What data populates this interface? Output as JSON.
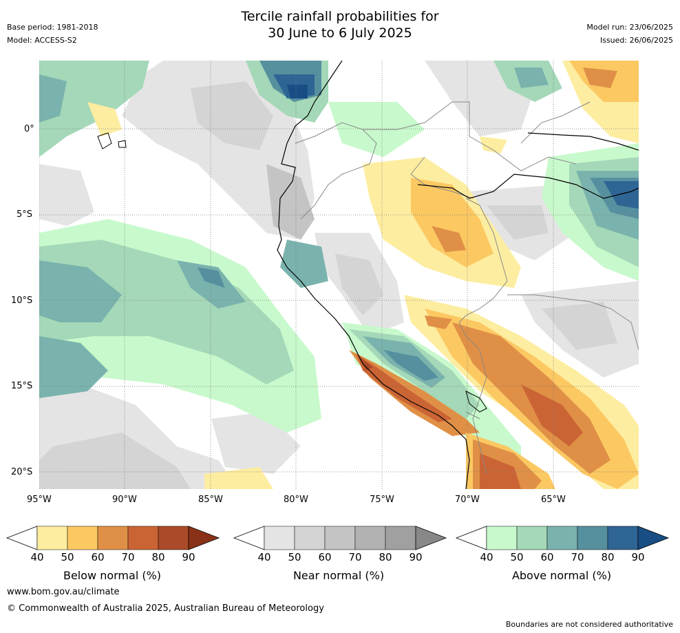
{
  "title": {
    "line1": "Tercile rainfall probabilities for",
    "line2": "30 June to 6 July 2025"
  },
  "meta": {
    "base_period": "Base period: 1981-2018",
    "model": "Model: ACCESS-S2",
    "model_run": "Model run: 23/06/2025",
    "issued": "Issued: 26/06/2025"
  },
  "axes": {
    "x_ticks": [
      "95°W",
      "90°W",
      "85°W",
      "80°W",
      "75°W",
      "70°W",
      "65°W"
    ],
    "y_ticks": [
      "0°",
      "5°S",
      "10°S",
      "15°S",
      "20°S"
    ]
  },
  "legends": [
    {
      "label": "Below normal (%)",
      "ticks": [
        "40",
        "50",
        "60",
        "70",
        "80",
        "90"
      ],
      "colors": [
        "#ffffff",
        "#fdeda0",
        "#fcc862",
        "#e09046",
        "#cb6434",
        "#aa4a28",
        "#8a3218"
      ]
    },
    {
      "label": "Near normal (%)",
      "ticks": [
        "40",
        "50",
        "60",
        "70",
        "80",
        "90"
      ],
      "colors": [
        "#ffffff",
        "#e4e4e4",
        "#d4d4d4",
        "#c4c4c4",
        "#b2b2b2",
        "#a0a0a0",
        "#888888"
      ]
    },
    {
      "label": "Above normal (%)",
      "ticks": [
        "40",
        "50",
        "60",
        "70",
        "80",
        "90"
      ],
      "colors": [
        "#ffffff",
        "#c8f9cc",
        "#a4d8b8",
        "#7ab3ad",
        "#56909f",
        "#2f6594",
        "#194e84"
      ]
    }
  ],
  "footer": {
    "url": "www.bom.gov.au/climate",
    "copyright": "© Commonwealth of Australia 2025, Australian Bureau of Meteorology",
    "disclaimer": "Boundaries are not considered authoritative"
  }
}
